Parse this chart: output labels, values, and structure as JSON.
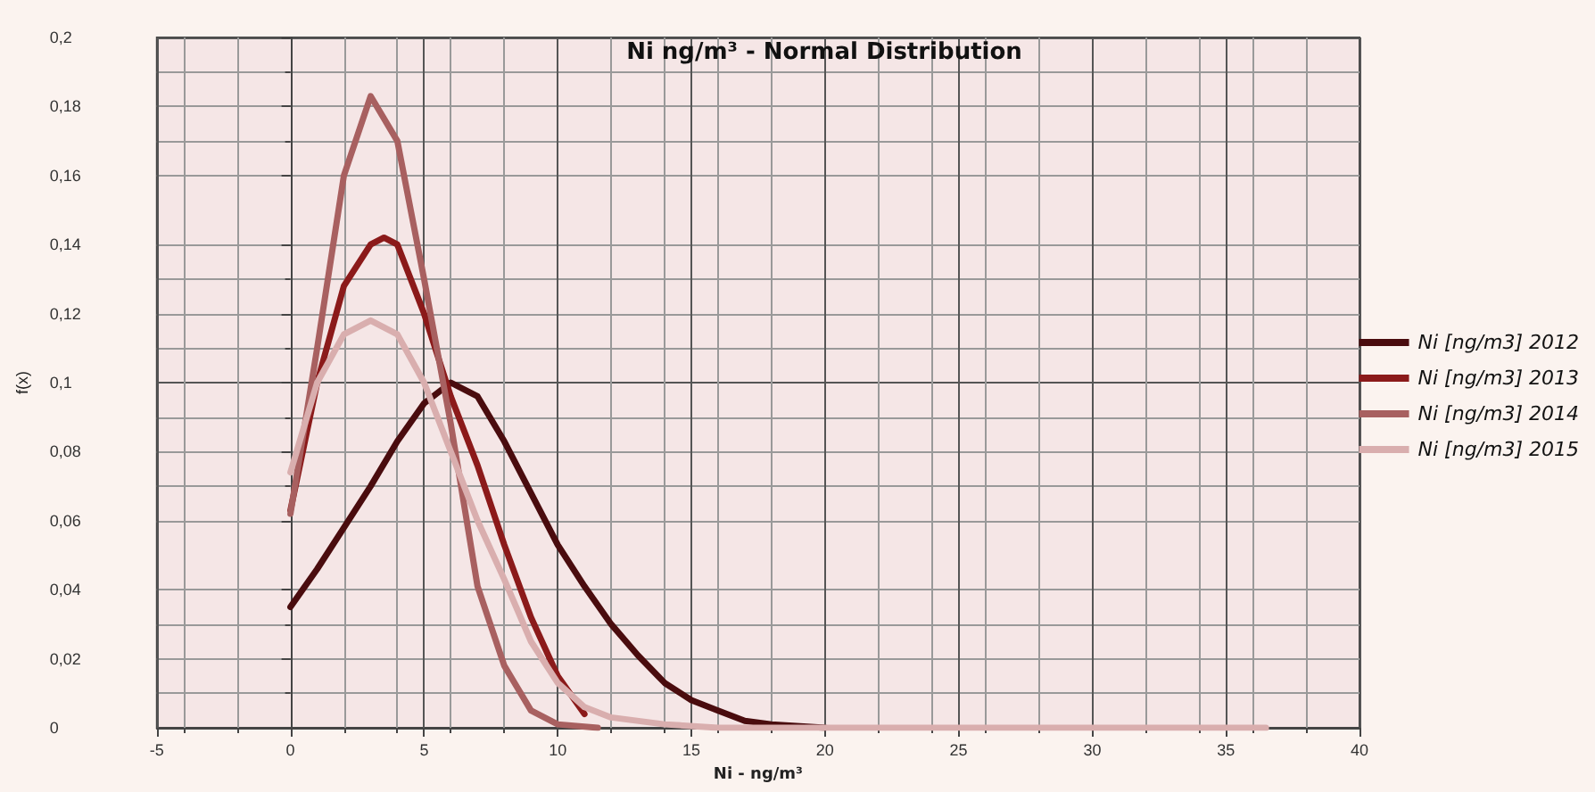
{
  "chart_data": {
    "type": "line",
    "title": "Ni ng/m³ - Normal Distribution",
    "xlabel": "Ni - ng/m³",
    "ylabel": "f(x)",
    "xlim": [
      -5,
      40
    ],
    "xticks": [
      -5,
      0,
      5,
      10,
      15,
      20,
      25,
      30,
      35,
      40
    ],
    "ylim": [
      0,
      0.2
    ],
    "yticks": [
      {
        "value": 0,
        "label": "0"
      },
      {
        "value": 0.02,
        "label": "0,02"
      },
      {
        "value": 0.04,
        "label": "0,04"
      },
      {
        "value": 0.06,
        "label": "0,06"
      },
      {
        "value": 0.08,
        "label": "0,08"
      },
      {
        "value": 0.1,
        "label": "0,1"
      },
      {
        "value": 0.12,
        "label": "0,12"
      },
      {
        "value": 0.14,
        "label": "0,14"
      },
      {
        "value": 0.16,
        "label": "0,16"
      },
      {
        "value": 0.18,
        "label": "0,18"
      },
      {
        "value": 0.2,
        "label": "0,2"
      }
    ],
    "grid": true,
    "legend": "right",
    "marker": "none",
    "line_style": "solid",
    "series": [
      {
        "name": "Ni [ng/m3] 2012",
        "color": "#4a0c0e",
        "x": [
          0,
          1,
          2,
          3,
          4,
          5,
          6,
          7,
          8,
          9,
          10,
          11,
          12,
          13,
          14,
          15,
          16,
          17,
          18,
          20
        ],
        "values": [
          0.035,
          0.046,
          0.058,
          0.07,
          0.083,
          0.094,
          0.1,
          0.096,
          0.083,
          0.068,
          0.053,
          0.041,
          0.03,
          0.021,
          0.013,
          0.008,
          0.005,
          0.002,
          0.001,
          0
        ]
      },
      {
        "name": "Ni [ng/m3] 2013",
        "color": "#8b1a1a",
        "x": [
          0,
          1,
          2,
          3,
          3.5,
          4,
          5,
          6,
          7,
          8,
          9,
          10,
          11
        ],
        "values": [
          0.063,
          0.1,
          0.128,
          0.14,
          0.142,
          0.14,
          0.12,
          0.096,
          0.076,
          0.053,
          0.032,
          0.015,
          0.004
        ]
      },
      {
        "name": "Ni [ng/m3] 2014",
        "color": "#a86060",
        "x": [
          0,
          1,
          2,
          3,
          4,
          5,
          6,
          7,
          8,
          9,
          10,
          11.5
        ],
        "values": [
          0.062,
          0.11,
          0.16,
          0.183,
          0.17,
          0.13,
          0.088,
          0.041,
          0.018,
          0.005,
          0.001,
          0
        ]
      },
      {
        "name": "Ni [ng/m3] 2015",
        "color": "#d9aeae",
        "x": [
          0,
          1,
          2,
          3,
          4,
          5,
          6,
          7,
          8,
          9,
          10,
          11,
          12,
          14,
          16,
          36.5
        ],
        "values": [
          0.074,
          0.1,
          0.114,
          0.118,
          0.114,
          0.1,
          0.08,
          0.06,
          0.043,
          0.025,
          0.013,
          0.006,
          0.003,
          0.001,
          0,
          0
        ]
      }
    ]
  }
}
